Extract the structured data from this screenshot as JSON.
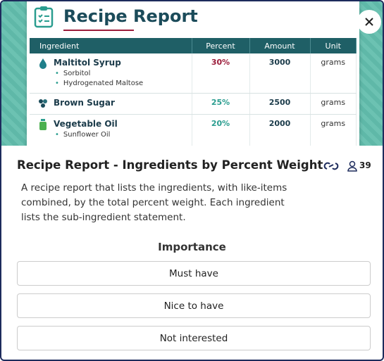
{
  "preview": {
    "title": "Recipe Report",
    "table": {
      "header": [
        "Ingredient",
        "Percent",
        "Amount",
        "Unit"
      ],
      "rows": [
        {
          "name": "Maltitol Syrup",
          "percent": "30%",
          "amount": "3000",
          "unit": "grams",
          "subs": [
            "Sorbitol",
            "Hydrogenated Maltose"
          ]
        },
        {
          "name": "Brown Sugar",
          "percent": "25%",
          "amount": "2500",
          "unit": "grams",
          "subs": []
        },
        {
          "name": "Vegetable Oil",
          "percent": "20%",
          "amount": "2000",
          "unit": "grams",
          "subs": [
            "Sunflower Oil"
          ]
        }
      ]
    }
  },
  "card": {
    "title": "Recipe Report - Ingredients by Percent Weight",
    "count": "39",
    "description": "A recipe report that lists the ingredients, with like-items combined, by the total percent weight. Each ingredient lists the sub-ingredient statement.",
    "question": "Importance",
    "options": [
      "Must have",
      "Nice to have",
      "Not interested"
    ]
  }
}
